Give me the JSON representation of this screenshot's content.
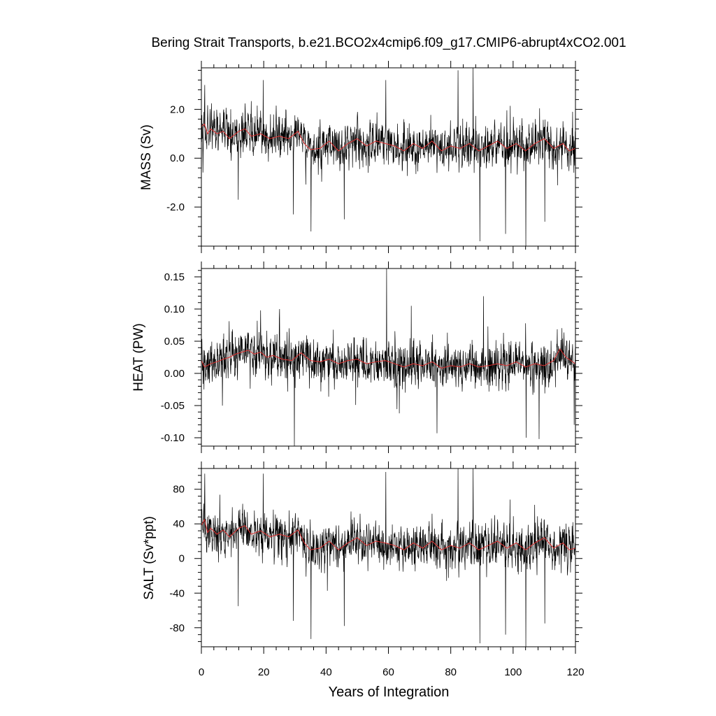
{
  "chart_data": {
    "type": "line",
    "title": "Bering Strait Transports, b.e21.BCO2x4cmip6.f09_g17.CMIP6-abrupt4xCO2.001",
    "xlabel": "Years of Integration",
    "xlim": [
      0,
      120
    ],
    "xticks": [
      "0",
      "20",
      "40",
      "60",
      "80",
      "100",
      "120"
    ],
    "grid": false,
    "series_colors": {
      "monthly": "#000000",
      "annual_mean": "#e03030"
    },
    "panels": [
      {
        "name": "mass",
        "ylabel": "MASS (Sv)",
        "ylim": [
          -3.6,
          3.7
        ],
        "yticks": [
          2.0,
          0.0,
          -2.0
        ],
        "ytick_labels": [
          "2.0",
          "0.0",
          "-2.0"
        ],
        "annual_mean": [
          {
            "x": 0,
            "y": 1.3
          },
          {
            "x": 1,
            "y": 1.4
          },
          {
            "x": 2,
            "y": 1.0
          },
          {
            "x": 3,
            "y": 1.2
          },
          {
            "x": 5,
            "y": 1.0
          },
          {
            "x": 7,
            "y": 1.1
          },
          {
            "x": 9,
            "y": 0.8
          },
          {
            "x": 12,
            "y": 1.1
          },
          {
            "x": 14,
            "y": 1.2
          },
          {
            "x": 16,
            "y": 0.9
          },
          {
            "x": 19,
            "y": 1.0
          },
          {
            "x": 22,
            "y": 0.8
          },
          {
            "x": 25,
            "y": 0.9
          },
          {
            "x": 28,
            "y": 0.8
          },
          {
            "x": 31,
            "y": 1.1
          },
          {
            "x": 33,
            "y": 0.6
          },
          {
            "x": 35,
            "y": 0.35
          },
          {
            "x": 38,
            "y": 0.4
          },
          {
            "x": 41,
            "y": 0.7
          },
          {
            "x": 44,
            "y": 0.3
          },
          {
            "x": 47,
            "y": 0.6
          },
          {
            "x": 50,
            "y": 0.8
          },
          {
            "x": 53,
            "y": 0.5
          },
          {
            "x": 56,
            "y": 0.7
          },
          {
            "x": 59,
            "y": 0.6
          },
          {
            "x": 62,
            "y": 0.5
          },
          {
            "x": 65,
            "y": 0.3
          },
          {
            "x": 68,
            "y": 0.6
          },
          {
            "x": 71,
            "y": 0.4
          },
          {
            "x": 74,
            "y": 0.7
          },
          {
            "x": 77,
            "y": 0.3
          },
          {
            "x": 80,
            "y": 0.5
          },
          {
            "x": 83,
            "y": 0.4
          },
          {
            "x": 86,
            "y": 0.6
          },
          {
            "x": 89,
            "y": 0.3
          },
          {
            "x": 92,
            "y": 0.5
          },
          {
            "x": 95,
            "y": 0.7
          },
          {
            "x": 98,
            "y": 0.4
          },
          {
            "x": 101,
            "y": 0.6
          },
          {
            "x": 104,
            "y": 0.3
          },
          {
            "x": 107,
            "y": 0.6
          },
          {
            "x": 110,
            "y": 0.8
          },
          {
            "x": 113,
            "y": 0.4
          },
          {
            "x": 116,
            "y": 0.6
          },
          {
            "x": 118,
            "y": 0.3
          },
          {
            "x": 120,
            "y": 0.4
          }
        ],
        "monthly_extremes": [
          {
            "x": 1.1,
            "y": 3.0
          },
          {
            "x": 11.8,
            "y": -1.7
          },
          {
            "x": 19.8,
            "y": 3.2
          },
          {
            "x": 29.5,
            "y": -2.3
          },
          {
            "x": 35.2,
            "y": -3.0
          },
          {
            "x": 45.8,
            "y": -2.5
          },
          {
            "x": 59.2,
            "y": 3.2
          },
          {
            "x": 82.3,
            "y": 3.6
          },
          {
            "x": 87.2,
            "y": 3.7
          },
          {
            "x": 89.3,
            "y": -3.4
          },
          {
            "x": 97.6,
            "y": -3.1
          },
          {
            "x": 104.1,
            "y": -3.6
          },
          {
            "x": 110.2,
            "y": -2.6
          }
        ]
      },
      {
        "name": "heat",
        "ylabel": "HEAT (PW)",
        "ylim": [
          -0.113,
          0.163
        ],
        "yticks": [
          0.15,
          0.1,
          0.05,
          0.0,
          -0.05,
          -0.1
        ],
        "ytick_labels": [
          "0.15",
          "0.10",
          "0.05",
          "0.00",
          "-0.05",
          "-0.10"
        ],
        "annual_mean": [
          {
            "x": 0,
            "y": 0.02
          },
          {
            "x": 1,
            "y": 0.01
          },
          {
            "x": 3,
            "y": 0.015
          },
          {
            "x": 5,
            "y": 0.018
          },
          {
            "x": 7,
            "y": 0.022
          },
          {
            "x": 9,
            "y": 0.025
          },
          {
            "x": 11,
            "y": 0.03
          },
          {
            "x": 13,
            "y": 0.033
          },
          {
            "x": 15,
            "y": 0.036
          },
          {
            "x": 17,
            "y": 0.03
          },
          {
            "x": 19,
            "y": 0.033
          },
          {
            "x": 21,
            "y": 0.025
          },
          {
            "x": 23,
            "y": 0.028
          },
          {
            "x": 26,
            "y": 0.022
          },
          {
            "x": 29,
            "y": 0.02
          },
          {
            "x": 32,
            "y": 0.032
          },
          {
            "x": 35,
            "y": 0.02
          },
          {
            "x": 38,
            "y": 0.018
          },
          {
            "x": 41,
            "y": 0.022
          },
          {
            "x": 44,
            "y": 0.015
          },
          {
            "x": 47,
            "y": 0.02
          },
          {
            "x": 50,
            "y": 0.022
          },
          {
            "x": 53,
            "y": 0.015
          },
          {
            "x": 56,
            "y": 0.018
          },
          {
            "x": 59,
            "y": 0.02
          },
          {
            "x": 62,
            "y": 0.015
          },
          {
            "x": 65,
            "y": 0.01
          },
          {
            "x": 68,
            "y": 0.015
          },
          {
            "x": 71,
            "y": 0.012
          },
          {
            "x": 74,
            "y": 0.018
          },
          {
            "x": 77,
            "y": 0.008
          },
          {
            "x": 80,
            "y": 0.012
          },
          {
            "x": 83,
            "y": 0.01
          },
          {
            "x": 86,
            "y": 0.015
          },
          {
            "x": 89,
            "y": 0.01
          },
          {
            "x": 92,
            "y": 0.012
          },
          {
            "x": 95,
            "y": 0.015
          },
          {
            "x": 98,
            "y": 0.012
          },
          {
            "x": 101,
            "y": 0.018
          },
          {
            "x": 104,
            "y": 0.01
          },
          {
            "x": 107,
            "y": 0.015
          },
          {
            "x": 110,
            "y": 0.012
          },
          {
            "x": 113,
            "y": 0.02
          },
          {
            "x": 115,
            "y": 0.038
          },
          {
            "x": 117,
            "y": 0.025
          },
          {
            "x": 120,
            "y": 0.015
          }
        ],
        "monthly_extremes": [
          {
            "x": 0.8,
            "y": -0.025
          },
          {
            "x": 19.0,
            "y": 0.098
          },
          {
            "x": 25.1,
            "y": 0.1
          },
          {
            "x": 29.8,
            "y": -0.113
          },
          {
            "x": 59.4,
            "y": 0.163
          },
          {
            "x": 67.3,
            "y": 0.105
          },
          {
            "x": 75.6,
            "y": -0.093
          },
          {
            "x": 90.5,
            "y": 0.12
          },
          {
            "x": 104.2,
            "y": -0.1
          },
          {
            "x": 108.3,
            "y": -0.102
          },
          {
            "x": 119.6,
            "y": -0.08
          }
        ]
      },
      {
        "name": "salt",
        "ylabel": "SALT (Sv*ppt)",
        "ylim": [
          -102,
          104
        ],
        "yticks": [
          80,
          40,
          0,
          -40,
          -80
        ],
        "ytick_labels": [
          "80",
          "40",
          "0",
          "-40",
          "-80"
        ],
        "annual_mean": [
          {
            "x": 0,
            "y": 38
          },
          {
            "x": 1,
            "y": 45
          },
          {
            "x": 2,
            "y": 30
          },
          {
            "x": 3,
            "y": 35
          },
          {
            "x": 5,
            "y": 28
          },
          {
            "x": 7,
            "y": 33
          },
          {
            "x": 9,
            "y": 25
          },
          {
            "x": 12,
            "y": 35
          },
          {
            "x": 14,
            "y": 38
          },
          {
            "x": 16,
            "y": 28
          },
          {
            "x": 19,
            "y": 32
          },
          {
            "x": 22,
            "y": 25
          },
          {
            "x": 25,
            "y": 28
          },
          {
            "x": 28,
            "y": 25
          },
          {
            "x": 31,
            "y": 33
          },
          {
            "x": 33,
            "y": 18
          },
          {
            "x": 35,
            "y": 10
          },
          {
            "x": 38,
            "y": 12
          },
          {
            "x": 41,
            "y": 20
          },
          {
            "x": 44,
            "y": 10
          },
          {
            "x": 47,
            "y": 18
          },
          {
            "x": 50,
            "y": 24
          },
          {
            "x": 53,
            "y": 15
          },
          {
            "x": 56,
            "y": 20
          },
          {
            "x": 59,
            "y": 18
          },
          {
            "x": 62,
            "y": 15
          },
          {
            "x": 65,
            "y": 10
          },
          {
            "x": 68,
            "y": 18
          },
          {
            "x": 71,
            "y": 12
          },
          {
            "x": 74,
            "y": 20
          },
          {
            "x": 77,
            "y": 10
          },
          {
            "x": 80,
            "y": 15
          },
          {
            "x": 83,
            "y": 12
          },
          {
            "x": 86,
            "y": 18
          },
          {
            "x": 89,
            "y": 10
          },
          {
            "x": 92,
            "y": 15
          },
          {
            "x": 95,
            "y": 20
          },
          {
            "x": 98,
            "y": 12
          },
          {
            "x": 101,
            "y": 18
          },
          {
            "x": 104,
            "y": 10
          },
          {
            "x": 107,
            "y": 18
          },
          {
            "x": 110,
            "y": 24
          },
          {
            "x": 113,
            "y": 12
          },
          {
            "x": 116,
            "y": 18
          },
          {
            "x": 118,
            "y": 10
          },
          {
            "x": 120,
            "y": 12
          }
        ],
        "monthly_extremes": [
          {
            "x": 1.1,
            "y": 98
          },
          {
            "x": 11.8,
            "y": -55
          },
          {
            "x": 19.8,
            "y": 98
          },
          {
            "x": 29.5,
            "y": -72
          },
          {
            "x": 35.2,
            "y": -93
          },
          {
            "x": 45.8,
            "y": -78
          },
          {
            "x": 59.2,
            "y": 100
          },
          {
            "x": 82.3,
            "y": 104
          },
          {
            "x": 87.2,
            "y": 104
          },
          {
            "x": 89.3,
            "y": -98
          },
          {
            "x": 97.6,
            "y": -88
          },
          {
            "x": 104.1,
            "y": -102
          },
          {
            "x": 110.2,
            "y": -75
          }
        ]
      }
    ]
  }
}
